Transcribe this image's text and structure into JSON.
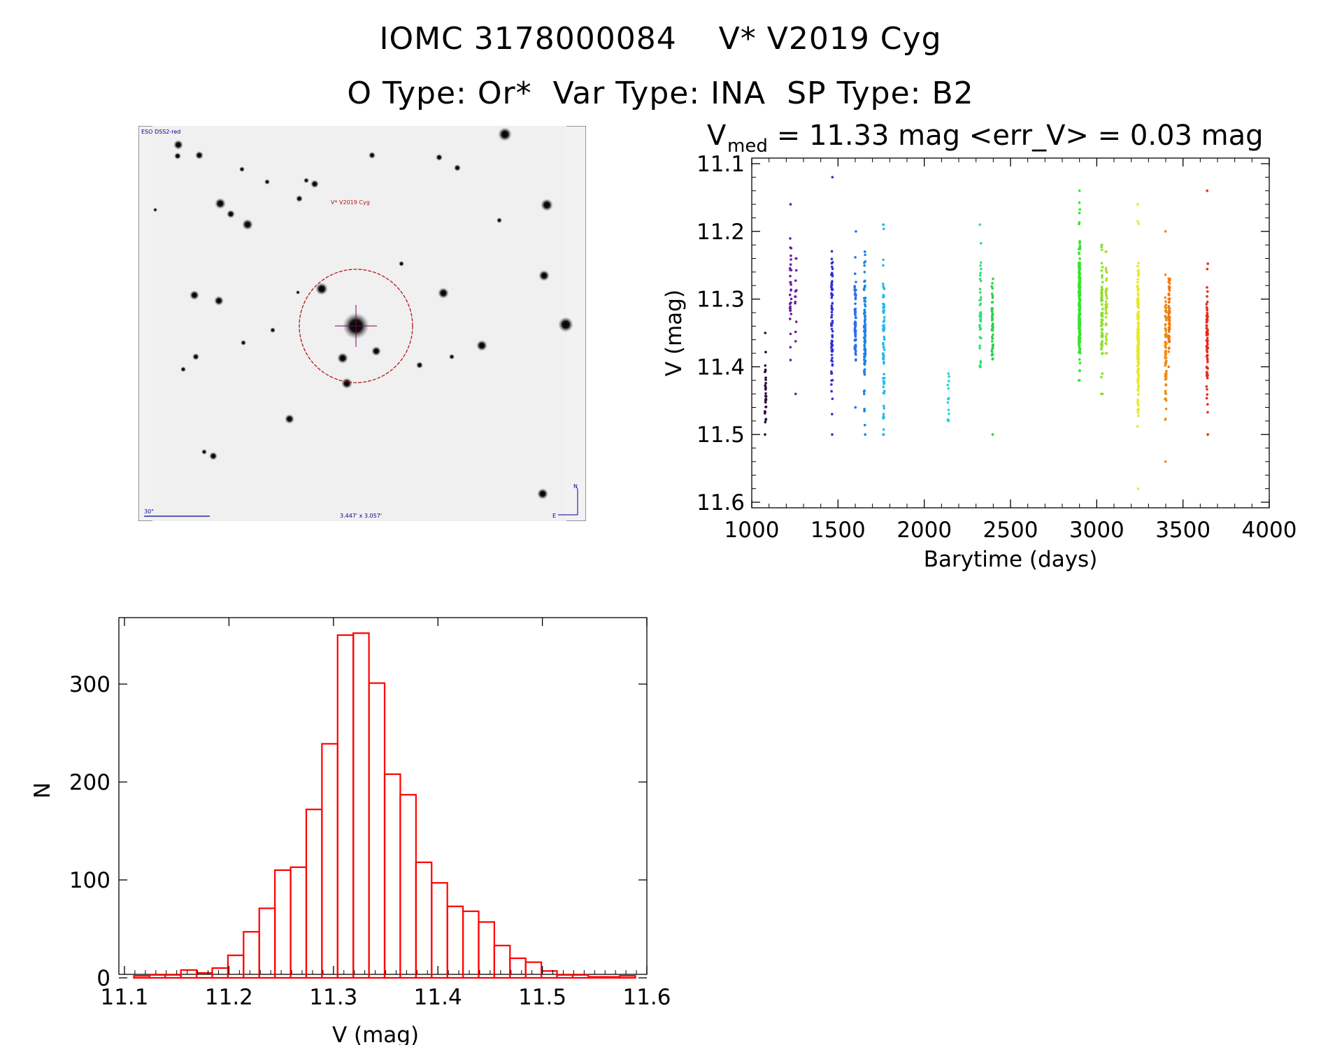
{
  "header": {
    "line1": "IOMC 3178000084    V* V2019 Cyg",
    "line2": "O Type: Or*  Var Type: INA  SP Type: B2"
  },
  "stamp": {
    "survey_label": "ESO DSS2-red",
    "target_label": "V* V2019 Cyg",
    "scale_label": "30\"",
    "fov_label": "3.447' x 3.057'",
    "compass_n": "N",
    "compass_e": "E"
  },
  "lightcurve": {
    "title_v": "V",
    "title_sub": "med",
    "title_rest": " = 11.33 mag <err_V> = 0.03 mag",
    "xlabel": "Barytime (days)",
    "ylabel": "V (mag)",
    "xticks": [
      "1000",
      "1500",
      "2000",
      "2500",
      "3000",
      "3500",
      "4000"
    ],
    "yticks": [
      "11.1",
      "11.2",
      "11.3",
      "11.4",
      "11.5",
      "11.6"
    ]
  },
  "histogram": {
    "xlabel": "V (mag)",
    "ylabel": "N",
    "xticks": [
      "11.1",
      "11.2",
      "11.3",
      "11.4",
      "11.5",
      "11.6"
    ],
    "yticks": [
      "0",
      "100",
      "200",
      "300"
    ]
  },
  "chart_data": [
    {
      "type": "scatter",
      "title": "V_med = 11.33 mag <err_V> = 0.03 mag",
      "xlabel": "Barytime (days)",
      "ylabel": "V (mag)",
      "xlim": [
        1000,
        4000
      ],
      "ylim": [
        11.1,
        11.6
      ],
      "y_inverted": true,
      "groups": [
        {
          "x": 1080,
          "center": 11.44,
          "spread": 0.03,
          "min": 11.35,
          "max": 11.5,
          "n": 30,
          "color": "#2a0d3c"
        },
        {
          "x": 1225,
          "center": 11.29,
          "spread": 0.04,
          "min": 11.16,
          "max": 11.39,
          "n": 30,
          "color": "#6a1ea0"
        },
        {
          "x": 1255,
          "center": 11.32,
          "spread": 0.04,
          "min": 11.24,
          "max": 11.44,
          "n": 12,
          "color": "#6a1ea0"
        },
        {
          "x": 1465,
          "center": 11.32,
          "spread": 0.06,
          "min": 11.12,
          "max": 11.5,
          "n": 80,
          "color": "#3030d8"
        },
        {
          "x": 1600,
          "center": 11.33,
          "spread": 0.04,
          "min": 11.2,
          "max": 11.46,
          "n": 70,
          "color": "#2c6ef0"
        },
        {
          "x": 1655,
          "center": 11.35,
          "spread": 0.05,
          "min": 11.23,
          "max": 11.5,
          "n": 90,
          "color": "#1a82e8"
        },
        {
          "x": 1765,
          "center": 11.37,
          "spread": 0.06,
          "min": 11.19,
          "max": 11.5,
          "n": 70,
          "color": "#25b8ec"
        },
        {
          "x": 2140,
          "center": 11.45,
          "spread": 0.02,
          "min": 11.41,
          "max": 11.48,
          "n": 12,
          "color": "#22d8cf"
        },
        {
          "x": 2325,
          "center": 11.32,
          "spread": 0.04,
          "min": 11.19,
          "max": 11.4,
          "n": 40,
          "color": "#33e07a"
        },
        {
          "x": 2395,
          "center": 11.34,
          "spread": 0.04,
          "min": 11.27,
          "max": 11.5,
          "n": 50,
          "color": "#2bd24a"
        },
        {
          "x": 2900,
          "center": 11.3,
          "spread": 0.05,
          "min": 11.14,
          "max": 11.42,
          "n": 200,
          "color": "#34e52c"
        },
        {
          "x": 3030,
          "center": 11.32,
          "spread": 0.04,
          "min": 11.22,
          "max": 11.44,
          "n": 70,
          "color": "#86e02a"
        },
        {
          "x": 3055,
          "center": 11.3,
          "spread": 0.04,
          "min": 11.23,
          "max": 11.38,
          "n": 40,
          "color": "#a8e027"
        },
        {
          "x": 3240,
          "center": 11.36,
          "spread": 0.06,
          "min": 11.16,
          "max": 11.58,
          "n": 180,
          "color": "#e6ea22"
        },
        {
          "x": 3400,
          "center": 11.36,
          "spread": 0.05,
          "min": 11.2,
          "max": 11.54,
          "n": 80,
          "color": "#f08a12"
        },
        {
          "x": 3420,
          "center": 11.32,
          "spread": 0.03,
          "min": 11.27,
          "max": 11.4,
          "n": 60,
          "color": "#f07812"
        },
        {
          "x": 3640,
          "center": 11.36,
          "spread": 0.05,
          "min": 11.14,
          "max": 11.5,
          "n": 70,
          "color": "#e8281c"
        }
      ]
    },
    {
      "type": "bar",
      "subtype": "histogram",
      "xlabel": "V (mag)",
      "ylabel": "N",
      "xlim": [
        11.1,
        11.6
      ],
      "ylim": [
        0,
        360
      ],
      "bin_width": 0.015,
      "bin_starts": [
        11.109,
        11.124,
        11.139,
        11.154,
        11.169,
        11.184,
        11.199,
        11.214,
        11.229,
        11.244,
        11.259,
        11.274,
        11.289,
        11.304,
        11.319,
        11.334,
        11.349,
        11.364,
        11.379,
        11.394,
        11.409,
        11.424,
        11.439,
        11.454,
        11.469,
        11.484,
        11.499,
        11.514,
        11.529,
        11.544,
        11.559,
        11.574
      ],
      "values": [
        2,
        3,
        3,
        8,
        5,
        10,
        23,
        47,
        71,
        110,
        113,
        172,
        239,
        350,
        352,
        301,
        208,
        187,
        118,
        97,
        73,
        68,
        57,
        33,
        20,
        16,
        7,
        3,
        3,
        1,
        1,
        2
      ],
      "color": "#ff0000"
    }
  ]
}
